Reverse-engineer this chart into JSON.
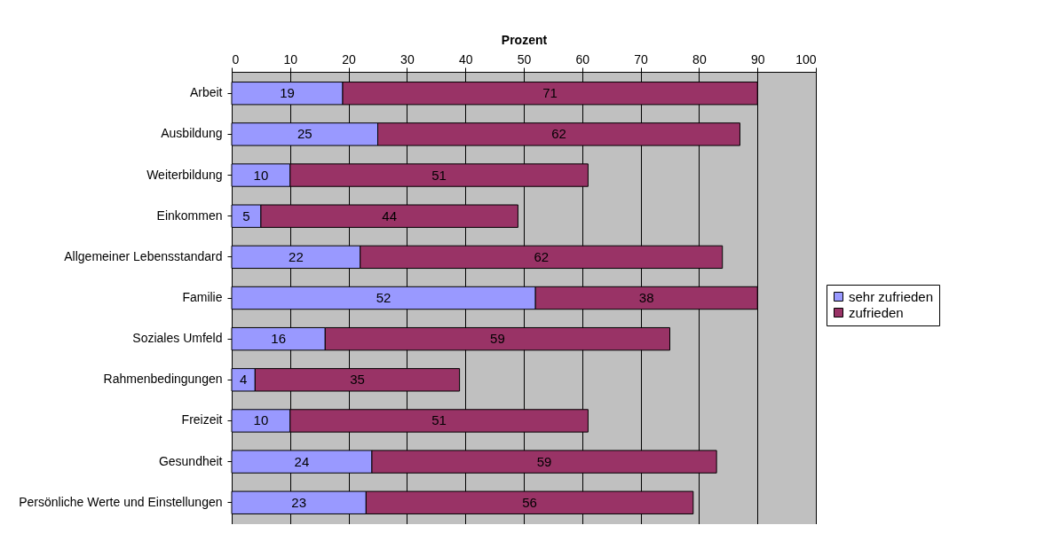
{
  "chart_data": {
    "type": "bar",
    "orientation": "horizontal",
    "stacked": true,
    "xlabel": "Prozent",
    "categories": [
      "Arbeit",
      "Ausbildung",
      "Weiterbildung",
      "Einkommen",
      "Allgemeiner Lebensstandard",
      "Familie",
      "Soziales Umfeld",
      "Rahmenbedingungen",
      "Freizeit",
      "Gesundheit",
      "Persönliche Werte und Einstellungen"
    ],
    "series": [
      {
        "name": "sehr zufrieden",
        "color": "#9999ff",
        "values": [
          19,
          25,
          10,
          5,
          22,
          52,
          16,
          4,
          10,
          24,
          23
        ]
      },
      {
        "name": "zufrieden",
        "color": "#993366",
        "values": [
          71,
          62,
          51,
          44,
          62,
          38,
          59,
          35,
          51,
          59,
          56
        ]
      }
    ],
    "xlim": [
      0,
      100
    ],
    "xticks": [
      0,
      10,
      20,
      30,
      40,
      50,
      60,
      70,
      80,
      90,
      100
    ],
    "grid": "x",
    "legend": "right",
    "data_labels": true
  }
}
